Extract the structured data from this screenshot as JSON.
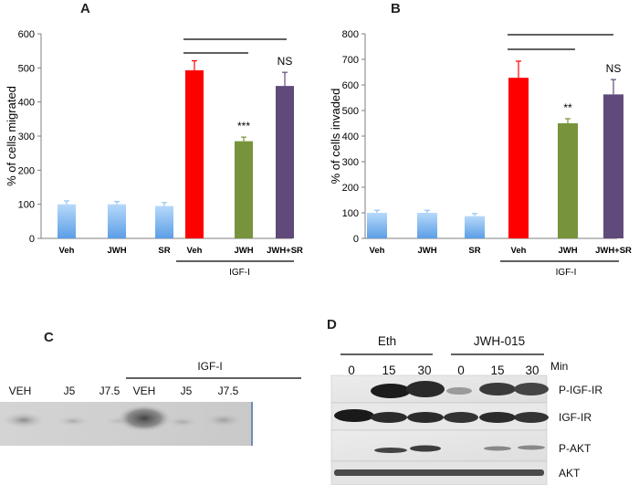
{
  "chart_data": [
    {
      "panel": "A",
      "type": "bar",
      "ylabel": "% of cells migrated",
      "ylim": [
        0,
        600
      ],
      "yticks": [
        0,
        100,
        200,
        300,
        400,
        500,
        600
      ],
      "categories": [
        "Veh",
        "JWH",
        "SR",
        "Veh",
        "JWH",
        "JWH+SR"
      ],
      "values": [
        100,
        100,
        95,
        493,
        285,
        447
      ],
      "errors": [
        10,
        8,
        10,
        28,
        12,
        40
      ],
      "colors": [
        "#8fc3f3",
        "#8fc3f3",
        "#8fc3f3",
        "#ff0000",
        "#77933c",
        "#604a7b"
      ],
      "annotations": [
        "",
        "",
        "",
        "",
        "***",
        "NS"
      ],
      "group_label": "IGF-I"
    },
    {
      "panel": "B",
      "type": "bar",
      "ylabel": "% of cells invaded",
      "ylim": [
        0,
        800
      ],
      "yticks": [
        0,
        100,
        200,
        300,
        400,
        500,
        600,
        700,
        800
      ],
      "categories": [
        "Veh",
        "JWH",
        "SR",
        "Veh",
        "JWH",
        "JWH+SR"
      ],
      "values": [
        100,
        100,
        87,
        628,
        450,
        563
      ],
      "errors": [
        10,
        10,
        10,
        65,
        18,
        58
      ],
      "colors": [
        "#8fc3f3",
        "#8fc3f3",
        "#8fc3f3",
        "#ff0000",
        "#77933c",
        "#604a7b"
      ],
      "annotations": [
        "",
        "",
        "",
        "",
        "**",
        "NS"
      ],
      "group_label": "IGF-I"
    }
  ],
  "panel_c": {
    "letter": "C",
    "lanes": [
      "VEH",
      "J5",
      "J7.5",
      "VEH",
      "J5",
      "J7.5"
    ],
    "group_label": "IGF-I"
  },
  "panel_d": {
    "letter": "D",
    "groups": [
      "Eth",
      "JWH-015"
    ],
    "times": [
      "0",
      "15",
      "30",
      "0",
      "15",
      "30"
    ],
    "time_unit": "Min",
    "rows": [
      "P-IGF-IR",
      "IGF-IR",
      "P-AKT",
      "AKT"
    ]
  }
}
